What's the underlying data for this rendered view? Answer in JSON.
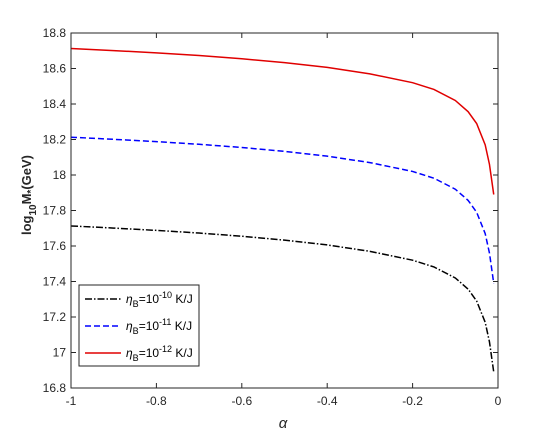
{
  "chart_data": {
    "type": "line",
    "title": "",
    "xlabel": "α",
    "ylabel": {
      "base": "log",
      "sub1": "10",
      "mid": "M",
      "sub2": "*",
      "tail": "(GeV)"
    },
    "xlim": [
      -1,
      0
    ],
    "ylim": [
      16.8,
      18.8
    ],
    "xticks": [
      "-1",
      "-0.8",
      "-0.6",
      "-0.4",
      "-0.2",
      "0"
    ],
    "yticks": [
      "16.8",
      "17",
      "17.2",
      "17.4",
      "17.6",
      "17.8",
      "18",
      "18.2",
      "18.4",
      "18.6",
      "18.8"
    ],
    "grid": false,
    "legend_position": "bottom-left",
    "x": [
      -1,
      -0.9,
      -0.8,
      -0.7,
      -0.6,
      -0.5,
      -0.4,
      -0.3,
      -0.2,
      -0.15,
      -0.1,
      -0.07,
      -0.05,
      -0.03,
      -0.02,
      -0.01
    ],
    "series": [
      {
        "legend": {
          "sym": "η",
          "sub": "B",
          "mid": "=10",
          "sup": "-10",
          "tail": " K/J"
        },
        "color": "#000000",
        "style": "dashdot",
        "values": [
          17.713,
          17.701,
          17.688,
          17.673,
          17.655,
          17.633,
          17.606,
          17.57,
          17.52,
          17.482,
          17.42,
          17.357,
          17.29,
          17.17,
          17.06,
          16.89
        ]
      },
      {
        "legend": {
          "sym": "η",
          "sub": "B",
          "mid": "=10",
          "sup": "-11",
          "tail": " K/J"
        },
        "color": "#0000ff",
        "style": "dashed",
        "values": [
          18.213,
          18.201,
          18.188,
          18.173,
          18.155,
          18.133,
          18.106,
          18.07,
          18.02,
          17.982,
          17.92,
          17.857,
          17.79,
          17.67,
          17.56,
          17.39
        ]
      },
      {
        "legend": {
          "sym": "η",
          "sub": "B",
          "mid": "=10",
          "sup": "-12",
          "tail": " K/J"
        },
        "color": "#e00000",
        "style": "solid",
        "values": [
          18.713,
          18.701,
          18.688,
          18.673,
          18.655,
          18.633,
          18.606,
          18.57,
          18.52,
          18.482,
          18.42,
          18.357,
          18.29,
          18.17,
          18.06,
          17.89
        ]
      }
    ]
  }
}
